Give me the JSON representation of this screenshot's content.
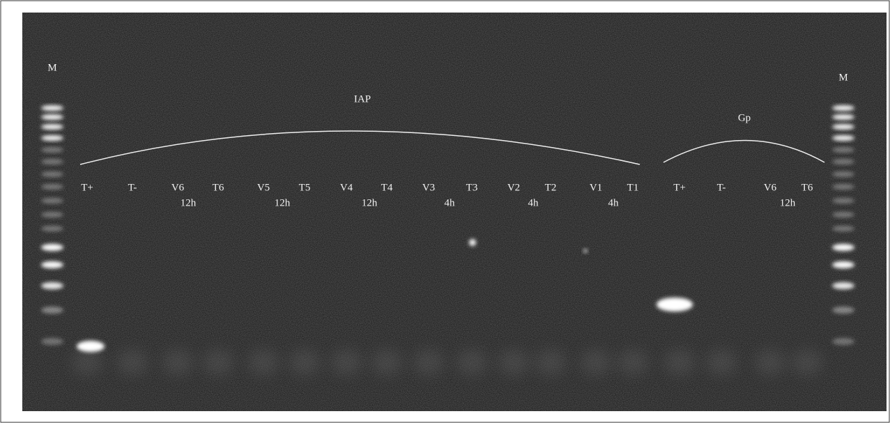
{
  "markers": [
    "M",
    "M"
  ],
  "groups": [
    {
      "label": "IAP",
      "lanes": [
        "T+",
        "T-",
        "V6",
        "T6",
        "V5",
        "T5",
        "V4",
        "T4",
        "V3",
        "T3",
        "V2",
        "T2",
        "V1",
        "T1"
      ],
      "times": [
        "12h",
        "12h",
        "12h",
        "4h",
        "4h",
        "4h"
      ]
    },
    {
      "label": "Gp",
      "lanes": [
        "T+",
        "T-",
        "V6",
        "T6"
      ],
      "times": [
        "12h"
      ]
    }
  ]
}
